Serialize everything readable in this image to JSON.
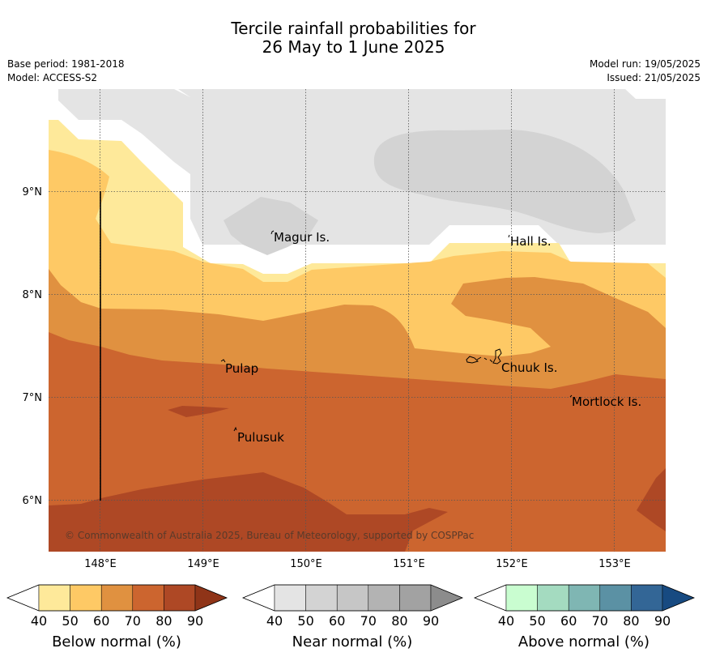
{
  "header": {
    "title_line1": "Tercile rainfall probabilities for",
    "title_line2": "26 May to 1 June 2025",
    "base_period": "Base period: 1981-2018",
    "model": "Model: ACCESS-S2",
    "model_run": "Model run: 19/05/2025",
    "issued": "Issued: 21/05/2025"
  },
  "map": {
    "lat_labels": [
      "9°N",
      "8°N",
      "7°N",
      "6°N"
    ],
    "lon_labels": [
      "148°E",
      "149°E",
      "150°E",
      "151°E",
      "152°E",
      "153°E"
    ],
    "places": [
      "Magur Is.",
      "Hall Is.",
      "Pulap",
      "Chuuk Is.",
      "Mortlock Is.",
      "Pulusuk"
    ],
    "copyright": "© Commonwealth of Australia 2025, Bureau of Meteorology, supported by COSPPac"
  },
  "colorbars": [
    {
      "title": "Below normal (%)",
      "ticks": [
        "40",
        "50",
        "60",
        "70",
        "80",
        "90"
      ],
      "colors": [
        "#ffffff",
        "#fee99a",
        "#fec965",
        "#e09140",
        "#cc652f",
        "#ae4825",
        "#8f3418"
      ]
    },
    {
      "title": "Near normal (%)",
      "ticks": [
        "40",
        "50",
        "60",
        "70",
        "80",
        "90"
      ],
      "colors": [
        "#ffffff",
        "#e4e4e4",
        "#d3d3d3",
        "#c6c6c6",
        "#b3b3b3",
        "#a2a2a2",
        "#8c8c8c"
      ]
    },
    {
      "title": "Above normal (%)",
      "ticks": [
        "40",
        "50",
        "60",
        "70",
        "80",
        "90"
      ],
      "colors": [
        "#ffffff",
        "#c9fdd0",
        "#a4dbc0",
        "#7fb6b3",
        "#5b91a4",
        "#336696",
        "#174a81"
      ]
    }
  ]
}
